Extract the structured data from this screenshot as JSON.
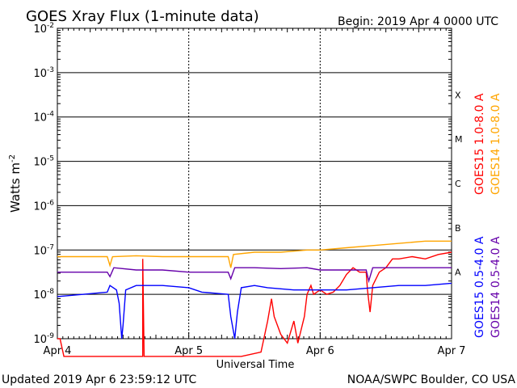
{
  "chart_data": {
    "type": "line",
    "title": "GOES Xray Flux (1-minute data)",
    "begin_label": "Begin:  2019 Apr 4 0000 UTC",
    "ylabel_main": "Watts m",
    "ylabel_exp": "-2",
    "xlabel": "Universal Time",
    "y_scale": "log",
    "ylim": [
      1e-09,
      0.01
    ],
    "xlim": [
      0,
      3
    ],
    "x_ticks": [
      {
        "pos": 0,
        "label": "Apr 4"
      },
      {
        "pos": 1,
        "label": "Apr 5"
      },
      {
        "pos": 2,
        "label": "Apr 6"
      },
      {
        "pos": 3,
        "label": "Apr 7"
      }
    ],
    "y_ticks": [
      {
        "exp": -2,
        "base": "10",
        "sup": "-2"
      },
      {
        "exp": -3,
        "base": "10",
        "sup": "-3"
      },
      {
        "exp": -4,
        "base": "10",
        "sup": "-4"
      },
      {
        "exp": -5,
        "base": "10",
        "sup": "-5"
      },
      {
        "exp": -6,
        "base": "10",
        "sup": "-6"
      },
      {
        "exp": -7,
        "base": "10",
        "sup": "-7"
      },
      {
        "exp": -8,
        "base": "10",
        "sup": "-8"
      },
      {
        "exp": -9,
        "base": "10",
        "sup": "-9"
      }
    ],
    "flare_classes": [
      {
        "label": "X",
        "exp": -3.5
      },
      {
        "label": "M",
        "exp": -4.5
      },
      {
        "label": "C",
        "exp": -5.5
      },
      {
        "label": "B",
        "exp": -6.5
      },
      {
        "label": "A",
        "exp": -7.5
      }
    ],
    "series": [
      {
        "name": "GOES15 1.0-8.0 A",
        "color": "#ff0000",
        "points": [
          [
            0,
            -9.0
          ],
          [
            0.02,
            -9.0
          ],
          [
            0.05,
            -9.4
          ],
          [
            0.3,
            -9.4
          ],
          [
            0.6,
            -9.4
          ],
          [
            0.65,
            -9.4
          ],
          [
            0.65,
            -7.2
          ],
          [
            0.66,
            -9.4
          ],
          [
            1.0,
            -9.4
          ],
          [
            1.4,
            -9.4
          ],
          [
            1.55,
            -9.3
          ],
          [
            1.6,
            -8.6
          ],
          [
            1.63,
            -8.1
          ],
          [
            1.65,
            -8.5
          ],
          [
            1.7,
            -8.9
          ],
          [
            1.75,
            -9.1
          ],
          [
            1.8,
            -8.6
          ],
          [
            1.83,
            -9.1
          ],
          [
            1.88,
            -8.5
          ],
          [
            1.9,
            -8.0
          ],
          [
            1.93,
            -7.8
          ],
          [
            1.95,
            -8.0
          ],
          [
            2.0,
            -7.9
          ],
          [
            2.05,
            -8.0
          ],
          [
            2.1,
            -7.95
          ],
          [
            2.15,
            -7.8
          ],
          [
            2.2,
            -7.55
          ],
          [
            2.25,
            -7.4
          ],
          [
            2.3,
            -7.5
          ],
          [
            2.35,
            -7.5
          ],
          [
            2.36,
            -7.9
          ],
          [
            2.38,
            -8.4
          ],
          [
            2.4,
            -7.8
          ],
          [
            2.45,
            -7.5
          ],
          [
            2.5,
            -7.4
          ],
          [
            2.55,
            -7.2
          ],
          [
            2.6,
            -7.2
          ],
          [
            2.7,
            -7.15
          ],
          [
            2.8,
            -7.2
          ],
          [
            2.9,
            -7.1
          ],
          [
            3.0,
            -7.05
          ]
        ]
      },
      {
        "name": "GOES14 1.0-8.0 A",
        "color": "#ffa500",
        "points": [
          [
            0,
            -7.15
          ],
          [
            0.2,
            -7.15
          ],
          [
            0.38,
            -7.15
          ],
          [
            0.4,
            -7.35
          ],
          [
            0.42,
            -7.15
          ],
          [
            0.6,
            -7.13
          ],
          [
            0.8,
            -7.15
          ],
          [
            1.0,
            -7.15
          ],
          [
            1.2,
            -7.15
          ],
          [
            1.3,
            -7.15
          ],
          [
            1.32,
            -7.4
          ],
          [
            1.34,
            -7.1
          ],
          [
            1.5,
            -7.05
          ],
          [
            1.7,
            -7.05
          ],
          [
            1.9,
            -7.0
          ],
          [
            2.0,
            -7.0
          ],
          [
            2.2,
            -6.95
          ],
          [
            2.4,
            -6.9
          ],
          [
            2.6,
            -6.85
          ],
          [
            2.8,
            -6.8
          ],
          [
            3.0,
            -6.8
          ]
        ]
      },
      {
        "name": "GOES15 0.5-4.0 A",
        "color": "#0000ff",
        "points": [
          [
            0,
            -8.05
          ],
          [
            0.2,
            -8.0
          ],
          [
            0.38,
            -7.95
          ],
          [
            0.4,
            -7.8
          ],
          [
            0.45,
            -7.9
          ],
          [
            0.47,
            -8.2
          ],
          [
            0.49,
            -9.0
          ],
          [
            0.5,
            -8.7
          ],
          [
            0.52,
            -7.9
          ],
          [
            0.6,
            -7.8
          ],
          [
            0.8,
            -7.8
          ],
          [
            1.0,
            -7.85
          ],
          [
            1.1,
            -7.95
          ],
          [
            1.3,
            -8.0
          ],
          [
            1.32,
            -8.5
          ],
          [
            1.35,
            -9.0
          ],
          [
            1.37,
            -8.4
          ],
          [
            1.4,
            -7.85
          ],
          [
            1.5,
            -7.8
          ],
          [
            1.6,
            -7.85
          ],
          [
            1.8,
            -7.9
          ],
          [
            2.0,
            -7.9
          ],
          [
            2.2,
            -7.9
          ],
          [
            2.4,
            -7.85
          ],
          [
            2.6,
            -7.8
          ],
          [
            2.8,
            -7.8
          ],
          [
            3.0,
            -7.75
          ]
        ]
      },
      {
        "name": "GOES14 0.5-4.0 A",
        "color": "#6600aa",
        "points": [
          [
            0,
            -7.5
          ],
          [
            0.2,
            -7.5
          ],
          [
            0.38,
            -7.5
          ],
          [
            0.4,
            -7.6
          ],
          [
            0.43,
            -7.4
          ],
          [
            0.6,
            -7.45
          ],
          [
            0.8,
            -7.45
          ],
          [
            1.0,
            -7.5
          ],
          [
            1.2,
            -7.5
          ],
          [
            1.3,
            -7.5
          ],
          [
            1.32,
            -7.65
          ],
          [
            1.35,
            -7.4
          ],
          [
            1.5,
            -7.4
          ],
          [
            1.7,
            -7.42
          ],
          [
            1.9,
            -7.4
          ],
          [
            2.0,
            -7.45
          ],
          [
            2.2,
            -7.45
          ],
          [
            2.35,
            -7.45
          ],
          [
            2.37,
            -7.7
          ],
          [
            2.4,
            -7.4
          ],
          [
            2.6,
            -7.4
          ],
          [
            2.8,
            -7.4
          ],
          [
            3.0,
            -7.4
          ]
        ]
      }
    ]
  },
  "footer": {
    "updated": "Updated 2019 Apr  6 23:59:12 UTC",
    "source": "NOAA/SWPC Boulder, CO USA"
  }
}
